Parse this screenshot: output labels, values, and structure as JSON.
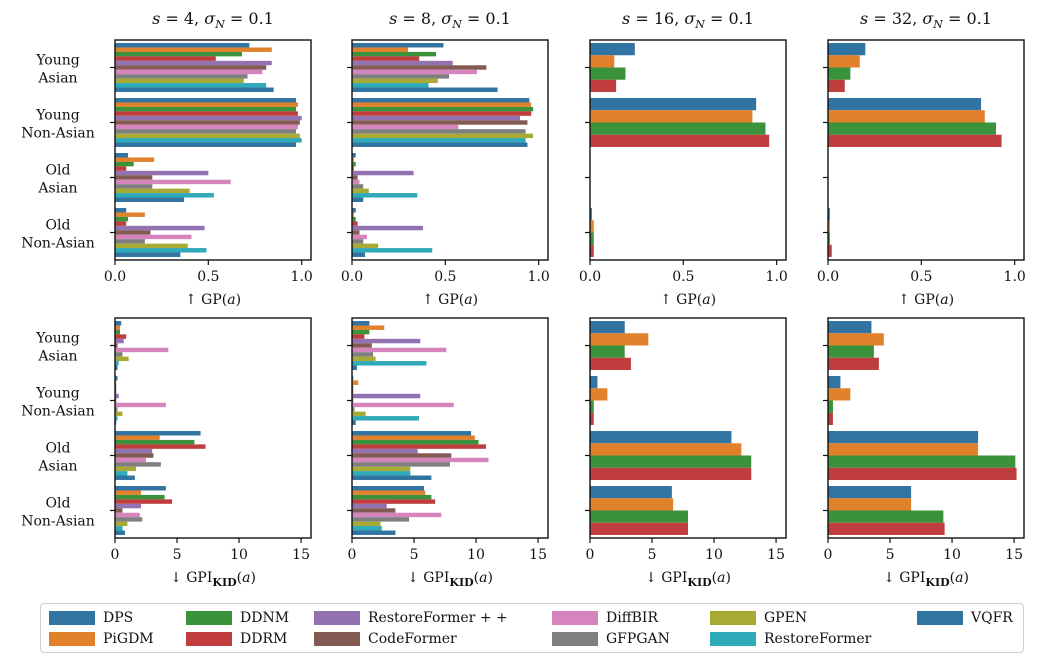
{
  "chart_data": {
    "type": "bar",
    "orientation": "horizontal",
    "categories": [
      [
        "Young",
        "Asian"
      ],
      [
        "Young",
        "Non-Asian"
      ],
      [
        "Old",
        "Asian"
      ],
      [
        "Old",
        "Non-Asian"
      ]
    ],
    "methods": [
      {
        "name": "DPS",
        "color": "#3274a1"
      },
      {
        "name": "PiGDM",
        "color": "#e1812c"
      },
      {
        "name": "DDNM",
        "color": "#3a923a"
      },
      {
        "name": "DDRM",
        "color": "#c03d3e"
      },
      {
        "name": "RestoreFormer++",
        "color": "#9372b2"
      },
      {
        "name": "CodeFormer",
        "color": "#845b53"
      },
      {
        "name": "DiffBIR",
        "color": "#d684bd"
      },
      {
        "name": "GFPGAN",
        "color": "#7f7f7f"
      },
      {
        "name": "GPEN",
        "color": "#a9aa35"
      },
      {
        "name": "RestoreFormer",
        "color": "#2eaab8"
      },
      {
        "name": "VQFR",
        "color": "#3274a1"
      }
    ],
    "legend_labels": [
      "DPS",
      "PiGDM",
      "DDNM",
      "DDRM",
      "RestoreFormer + +",
      "CodeFormer",
      "DiffBIR",
      "GFPGAN",
      "GPEN",
      "RestoreFormer",
      "VQFR"
    ],
    "legend_placement": "bottom",
    "panels": [
      {
        "title": "s = 4, σ_N = 0.1",
        "xlabel": "↑ GP(a)",
        "xlim": [
          0,
          1.05
        ],
        "xticks": [
          "0.0",
          "0.5",
          "1.0"
        ],
        "xtick_values": [
          0,
          0.5,
          1.0
        ],
        "series": [
          [
            0.72,
            0.97,
            0.07,
            0.06
          ],
          [
            0.84,
            0.98,
            0.21,
            0.16
          ],
          [
            0.68,
            0.97,
            0.1,
            0.07
          ],
          [
            0.54,
            0.98,
            0.06,
            0.06
          ],
          [
            0.84,
            1.0,
            0.5,
            0.48
          ],
          [
            0.81,
            0.99,
            0.2,
            0.19
          ],
          [
            0.79,
            0.98,
            0.62,
            0.41
          ],
          [
            0.71,
            0.97,
            0.2,
            0.16
          ],
          [
            0.69,
            0.99,
            0.4,
            0.39
          ],
          [
            0.81,
            1.0,
            0.53,
            0.49
          ],
          [
            0.85,
            0.97,
            0.37,
            0.35
          ]
        ]
      },
      {
        "title": "s = 8, σ_N = 0.1",
        "xlabel": "↑ GP(a)",
        "xlim": [
          0,
          1.05
        ],
        "xticks": [
          "0.0",
          "0.5",
          "1.0"
        ],
        "xtick_values": [
          0,
          0.5,
          1.0
        ],
        "series": [
          [
            0.49,
            0.95,
            0.02,
            0.02
          ],
          [
            0.3,
            0.96,
            0.01,
            0.01
          ],
          [
            0.45,
            0.97,
            0.02,
            0.02
          ],
          [
            0.36,
            0.96,
            0.01,
            0.03
          ],
          [
            0.54,
            0.9,
            0.33,
            0.38
          ],
          [
            0.72,
            0.94,
            0.03,
            0.04
          ],
          [
            0.67,
            0.57,
            0.04,
            0.08
          ],
          [
            0.52,
            0.93,
            0.06,
            0.06
          ],
          [
            0.46,
            0.97,
            0.09,
            0.14
          ],
          [
            0.41,
            0.93,
            0.35,
            0.43
          ],
          [
            0.78,
            0.94,
            0.06,
            0.07
          ]
        ]
      },
      {
        "title": "s = 16, σ_N = 0.1",
        "xlabel": "↑ GP(a)",
        "xlim": [
          0,
          1.05
        ],
        "xticks": [
          "0.0",
          "0.5",
          "1.0"
        ],
        "xtick_values": [
          0,
          0.5,
          1.0
        ],
        "series": [
          [
            0.24,
            0.89,
            0.0,
            0.01
          ],
          [
            0.13,
            0.87,
            0.0,
            0.02
          ],
          [
            0.19,
            0.94,
            0.0,
            0.02
          ],
          [
            0.14,
            0.96,
            0.0,
            0.02
          ]
        ]
      },
      {
        "title": "s = 32, σ_N = 0.1",
        "xlabel": "↑ GP(a)",
        "xlim": [
          0,
          1.05
        ],
        "xticks": [
          "0.0",
          "0.5",
          "1.0"
        ],
        "xtick_values": [
          0,
          0.5,
          1.0
        ],
        "series": [
          [
            0.2,
            0.82,
            0.0,
            0.01
          ],
          [
            0.17,
            0.84,
            0.0,
            0.01
          ],
          [
            0.12,
            0.9,
            0.0,
            0.01
          ],
          [
            0.09,
            0.93,
            0.0,
            0.02
          ]
        ]
      },
      {
        "title": "",
        "xlabel": "↓ GPI_KID(a)",
        "xlim": [
          0,
          15.8
        ],
        "xticks": [
          "0",
          "5",
          "10",
          "15"
        ],
        "xtick_values": [
          0,
          5,
          10,
          15
        ],
        "series": [
          [
            0.5,
            0.2,
            6.9,
            4.1
          ],
          [
            0.4,
            0.1,
            3.6,
            2.1
          ],
          [
            0.4,
            0.1,
            6.4,
            4.0
          ],
          [
            0.9,
            0.1,
            7.3,
            4.6
          ],
          [
            0.7,
            0.3,
            3.0,
            2.1
          ],
          [
            0.2,
            0.1,
            3.1,
            0.6
          ],
          [
            4.3,
            4.1,
            2.5,
            2.0
          ],
          [
            0.6,
            0.2,
            3.7,
            2.2
          ],
          [
            1.1,
            0.6,
            1.7,
            1.0
          ],
          [
            0.3,
            0.2,
            1.0,
            0.6
          ],
          [
            0.2,
            0.1,
            1.6,
            0.8
          ]
        ]
      },
      {
        "title": "",
        "xlabel": "↓ GPI_KID(a)",
        "xlim": [
          0,
          15.8
        ],
        "xticks": [
          "0",
          "5",
          "10",
          "15"
        ],
        "xtick_values": [
          0,
          5,
          10,
          15
        ],
        "series": [
          [
            1.4,
            0.1,
            9.6,
            5.8
          ],
          [
            2.6,
            0.5,
            9.9,
            5.9
          ],
          [
            1.4,
            0.1,
            10.2,
            6.4
          ],
          [
            1.0,
            0.1,
            10.8,
            6.7
          ],
          [
            5.5,
            5.5,
            5.3,
            2.8
          ],
          [
            1.6,
            0.1,
            8.0,
            3.5
          ],
          [
            7.6,
            8.2,
            11.0,
            7.2
          ],
          [
            1.7,
            0.2,
            7.9,
            4.6
          ],
          [
            1.9,
            1.1,
            4.7,
            2.3
          ],
          [
            6.0,
            5.4,
            4.7,
            2.4
          ],
          [
            0.4,
            0.3,
            6.4,
            3.5
          ]
        ]
      },
      {
        "title": "",
        "xlabel": "↓ GPI_KID(a)",
        "xlim": [
          0,
          15.8
        ],
        "xticks": [
          "0",
          "5",
          "10",
          "15"
        ],
        "xtick_values": [
          0,
          5,
          10,
          15
        ],
        "series": [
          [
            2.8,
            0.6,
            11.4,
            6.6
          ],
          [
            4.7,
            1.4,
            12.2,
            6.7
          ],
          [
            2.8,
            0.3,
            13.0,
            7.9
          ],
          [
            3.3,
            0.3,
            13.0,
            7.9
          ]
        ]
      },
      {
        "title": "",
        "xlabel": "↓ GPI_KID(a)",
        "xlim": [
          0,
          15.8
        ],
        "xticks": [
          "0",
          "5",
          "10",
          "15"
        ],
        "xtick_values": [
          0,
          5,
          10,
          15
        ],
        "series": [
          [
            3.5,
            1.0,
            12.1,
            6.7
          ],
          [
            4.5,
            1.8,
            12.1,
            6.7
          ],
          [
            3.7,
            0.4,
            15.1,
            9.3
          ],
          [
            4.1,
            0.4,
            15.2,
            9.4
          ]
        ]
      }
    ]
  }
}
